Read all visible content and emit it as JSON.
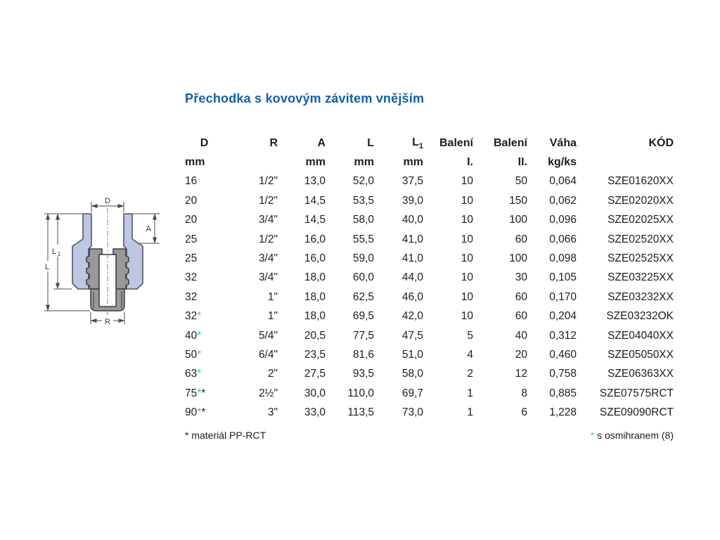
{
  "page": {
    "title": "Přechodka s kovovým závitem vnějším"
  },
  "colors": {
    "title_blue": "#155fa5",
    "star_blue": "#4cb8d2",
    "body_fill_blue": "#bdc6e3",
    "insert_fill_gray": "#98999b"
  },
  "drawing": {
    "labels": {
      "d": "D",
      "a": "A",
      "l": "L",
      "l1_main": "L",
      "l1_sub": "1",
      "r": "R"
    }
  },
  "table": {
    "columns": [
      {
        "label": "D",
        "sub": "",
        "unit": "mm"
      },
      {
        "label": "R",
        "sub": "",
        "unit": ""
      },
      {
        "label": "A",
        "sub": "",
        "unit": "mm"
      },
      {
        "label": "L",
        "sub": "",
        "unit": "mm"
      },
      {
        "label": "L",
        "sub": "1",
        "unit": "mm"
      },
      {
        "label": "Balení",
        "sub": "",
        "unit": "I."
      },
      {
        "label": "Balení",
        "sub": "",
        "unit": "II."
      },
      {
        "label": "Váha",
        "sub": "",
        "unit": "kg/ks"
      },
      {
        "label": "KÓD",
        "sub": "",
        "unit": ""
      }
    ],
    "rows": [
      {
        "d": "16",
        "star_blue": "",
        "star_black": "",
        "values": [
          "1/2\"",
          "13,0",
          "52,0",
          "37,5",
          "10",
          "50",
          "0,064",
          "SZE01620XX"
        ]
      },
      {
        "d": "20",
        "star_blue": "",
        "star_black": "",
        "values": [
          "1/2\"",
          "14,5",
          "53,5",
          "39,0",
          "10",
          "150",
          "0,062",
          "SZE02020XX"
        ]
      },
      {
        "d": "20",
        "star_blue": "",
        "star_black": "",
        "values": [
          "3/4\"",
          "14,5",
          "58,0",
          "40,0",
          "10",
          "100",
          "0,096",
          "SZE02025XX"
        ]
      },
      {
        "d": "25",
        "star_blue": "",
        "star_black": "",
        "values": [
          "1/2\"",
          "16,0",
          "55,5",
          "41,0",
          "10",
          "60",
          "0,066",
          "SZE02520XX"
        ]
      },
      {
        "d": "25",
        "star_blue": "",
        "star_black": "",
        "values": [
          "3/4\"",
          "16,0",
          "59,0",
          "41,0",
          "10",
          "100",
          "0,098",
          "SZE02525XX"
        ]
      },
      {
        "d": "32",
        "star_blue": "",
        "star_black": "",
        "values": [
          "3/4\"",
          "18,0",
          "60,0",
          "44,0",
          "10",
          "30",
          "0,105",
          "SZE03225XX"
        ]
      },
      {
        "d": "32",
        "star_blue": "",
        "star_black": "",
        "values": [
          "1\"",
          "18,0",
          "62,5",
          "46,0",
          "10",
          "60",
          "0,170",
          "SZE03232XX"
        ]
      },
      {
        "d": "32",
        "star_blue": "*",
        "star_black": "",
        "values": [
          "1\"",
          "18,0",
          "69,5",
          "42,0",
          "10",
          "60",
          "0,204",
          "SZE03232OK"
        ]
      },
      {
        "d": "40",
        "star_blue": "*",
        "star_black": "",
        "values": [
          "5/4\"",
          "20,5",
          "77,5",
          "47,5",
          "5",
          "40",
          "0,312",
          "SZE04040XX"
        ]
      },
      {
        "d": "50",
        "star_blue": "*",
        "star_black": "",
        "values": [
          "6/4\"",
          "23,5",
          "81,6",
          "51,0",
          "4",
          "20",
          "0,460",
          "SZE05050XX"
        ]
      },
      {
        "d": "63",
        "star_blue": "*",
        "star_black": "",
        "values": [
          "2\"",
          "27,5",
          "93,5",
          "58,0",
          "2",
          "12",
          "0,758",
          "SZE06363XX"
        ]
      },
      {
        "d": "75",
        "star_blue": "*",
        "star_black": "*",
        "values": [
          "2½\"",
          "30,0",
          "110,0",
          "69,7",
          "1",
          "8",
          "0,885",
          "SZE07575RCT"
        ]
      },
      {
        "d": "90",
        "star_blue": "*",
        "star_black": "*",
        "values": [
          "3\"",
          "33,0",
          "113,5",
          "73,0",
          "1",
          "6",
          "1,228",
          "SZE09090RCT"
        ]
      }
    ]
  },
  "footnotes": {
    "left": {
      "star": "*",
      "text": " materiál PP-RCT"
    },
    "right": {
      "star": "*",
      "text": " s osmihranem (8)"
    }
  }
}
